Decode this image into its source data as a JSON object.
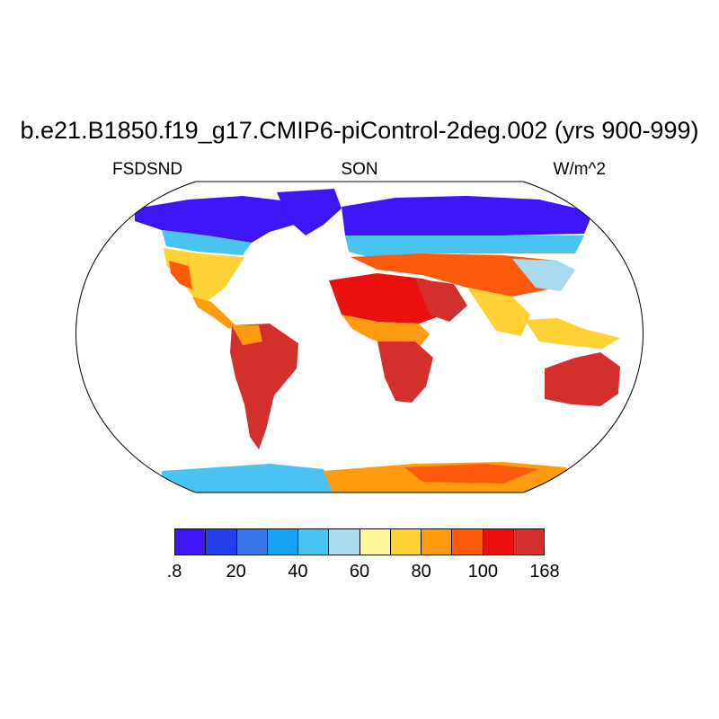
{
  "title": "b.e21.B1850.f19_g17.CMIP6-piControl-2deg.002 (yrs 900-999)",
  "variable": "FSDSND",
  "season": "SON",
  "units": "W/m^2",
  "colorbar": {
    "colors": [
      "#3f14f5",
      "#2340e8",
      "#3a78ea",
      "#17a2f5",
      "#48c3f2",
      "#a9daf0",
      "#fef89a",
      "#fed234",
      "#fe9b0e",
      "#fe5a0c",
      "#e9100e",
      "#d32f2d"
    ],
    "labels": [
      ".8",
      "20",
      "40",
      "60",
      "80",
      "100",
      "168"
    ]
  }
}
